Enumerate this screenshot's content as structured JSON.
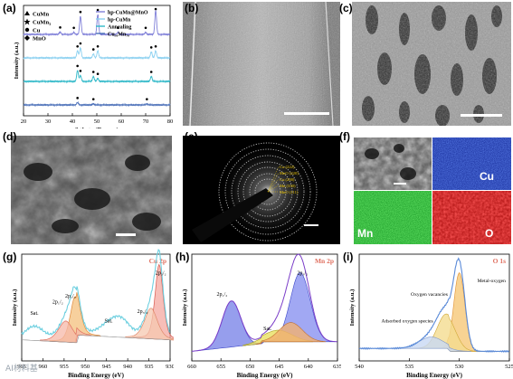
{
  "panels": {
    "a": {
      "label": "(a)"
    },
    "b": {
      "label": "(b)"
    },
    "c": {
      "label": "(c)"
    },
    "d": {
      "label": "(d)"
    },
    "e": {
      "label": "(e)"
    },
    "f": {
      "label": "(f)",
      "maps": [
        "Cu",
        "Mn",
        "O"
      ]
    },
    "g": {
      "label": "(g)"
    },
    "h": {
      "label": "(h)"
    },
    "i": {
      "label": "(i)"
    }
  },
  "saed_rings": [
    "Cu (222)",
    "MnO (220)",
    "Cu (200)",
    "Mn (330)",
    "MnO (111)"
  ],
  "watermark": "AI材料基",
  "chart_data": [
    {
      "id": "a",
      "type": "line",
      "xlabel": "2 theta (Degree)",
      "ylabel": "Intensity (a.u.)",
      "xlim": [
        20,
        80
      ],
      "xticks": [
        20,
        30,
        40,
        50,
        60,
        70,
        80
      ],
      "legend_markers": [
        {
          "name": "CuMn",
          "marker": "triangle"
        },
        {
          "name": "CuMn₃",
          "marker": "star"
        },
        {
          "name": "Cu",
          "marker": "circle"
        },
        {
          "name": "MnO",
          "marker": "diamond"
        }
      ],
      "legend_lines": [
        {
          "name": "hp-CuMn@MnO",
          "color": "#7f7fd8"
        },
        {
          "name": "hp-CuMn",
          "color": "#8ad0f0"
        },
        {
          "name": "Annealing",
          "color": "#2fb8c8"
        },
        {
          "name": "Cu₃₀Mn₇₀",
          "color": "#4a6fb8"
        }
      ],
      "series": [
        {
          "name": "hp-CuMn@MnO",
          "color": "#7f7fd8",
          "offset": 3.0,
          "peaks": [
            {
              "x": 35.0,
              "h": 0.12
            },
            {
              "x": 40.6,
              "h": 0.1
            },
            {
              "x": 43.3,
              "h": 0.9
            },
            {
              "x": 50.4,
              "h": 1.0
            },
            {
              "x": 58.7,
              "h": 0.1
            },
            {
              "x": 70.0,
              "h": 0.1
            },
            {
              "x": 74.1,
              "h": 1.2
            }
          ]
        },
        {
          "name": "hp-CuMn",
          "color": "#8ad0f0",
          "offset": 2.0,
          "peaks": [
            {
              "x": 42.1,
              "h": 0.35
            },
            {
              "x": 43.3,
              "h": 0.5
            },
            {
              "x": 48.6,
              "h": 0.2
            },
            {
              "x": 50.4,
              "h": 0.35
            },
            {
              "x": 72.3,
              "h": 0.3
            },
            {
              "x": 74.1,
              "h": 0.35
            }
          ]
        },
        {
          "name": "Annealing",
          "color": "#2fb8c8",
          "offset": 1.0,
          "peaks": [
            {
              "x": 42.1,
              "h": 0.55
            },
            {
              "x": 43.3,
              "h": 0.3
            },
            {
              "x": 48.6,
              "h": 0.25
            },
            {
              "x": 50.4,
              "h": 0.15
            },
            {
              "x": 72.3,
              "h": 0.25
            }
          ]
        },
        {
          "name": "Cu₃₀Mn₇₀",
          "color": "#4a6fb8",
          "offset": 0.0,
          "peaks": [
            {
              "x": 42.1,
              "h": 0.12
            },
            {
              "x": 48.6,
              "h": 0.06
            },
            {
              "x": 70.5,
              "h": 0.06
            }
          ]
        }
      ]
    },
    {
      "id": "g",
      "type": "line",
      "title": "Cu 2p",
      "xlabel": "Binding Energy (eV)",
      "ylabel": "Intensity (a.u.)",
      "xlim": [
        965,
        930
      ],
      "xticks": [
        965,
        960,
        955,
        950,
        945,
        940,
        935,
        930
      ],
      "annotations": [
        "Sat.",
        "2p₁/₂",
        "2p₁/₂",
        "Sat.",
        "2p₃/₂",
        "2p₃/₂"
      ]
    },
    {
      "id": "h",
      "type": "line",
      "title": "Mn 2p",
      "xlabel": "Binding Energy (eV)",
      "ylabel": "Intensity (a.u.)",
      "xlim": [
        660,
        635
      ],
      "xticks": [
        660,
        655,
        650,
        645,
        640,
        635
      ],
      "annotations": [
        "2p₁/₂",
        "Sat.",
        "2p₃/₂"
      ]
    },
    {
      "id": "i",
      "type": "line",
      "title": "O 1s",
      "xlabel": "Binding Energy (eV)",
      "ylabel": "Intensity (a.u.)",
      "xlim": [
        540,
        525
      ],
      "xticks": [
        540,
        535,
        530,
        525
      ],
      "annotations": [
        "Metal-oxygen",
        "Oxygen vacancies",
        "Adsorbed oxygen species"
      ]
    }
  ]
}
